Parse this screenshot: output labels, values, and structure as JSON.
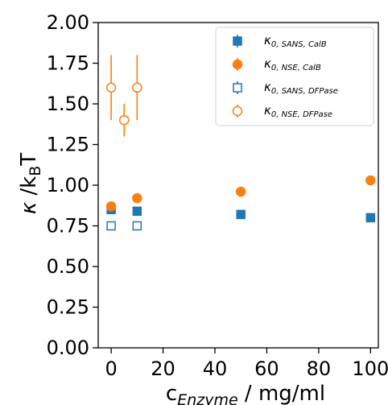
{
  "chart_data": {
    "type": "scatter",
    "xlabel_main": "c",
    "xlabel_sub": "Enzyme",
    "xlabel_rest": " / mg/ml",
    "ylabel_kappa": "κ",
    "ylabel_mid": " /k",
    "ylabel_sub": "B",
    "ylabel_rest": "T",
    "xlim": [
      -5,
      103
    ],
    "ylim": [
      0,
      2.0
    ],
    "xticks": [
      0,
      20,
      40,
      60,
      80,
      100
    ],
    "yticks": [
      0.0,
      0.25,
      0.5,
      0.75,
      1.0,
      1.25,
      1.5,
      1.75,
      2.0
    ],
    "xtick_labels": [
      "0",
      "20",
      "40",
      "60",
      "80",
      "100"
    ],
    "ytick_labels": [
      "0.00",
      "0.25",
      "0.50",
      "0.75",
      "1.00",
      "1.25",
      "1.50",
      "1.75",
      "2.00"
    ],
    "legend_position": "top-right",
    "series": [
      {
        "name_main": "κ",
        "name_sub": "0, SANS, CalB",
        "marker": "square",
        "filled": true,
        "color": "#1f77b4",
        "points": [
          {
            "x": 0,
            "y": 0.85,
            "err": 0.02
          },
          {
            "x": 10,
            "y": 0.84,
            "err": 0.02
          },
          {
            "x": 50,
            "y": 0.82,
            "err": 0.01
          },
          {
            "x": 100,
            "y": 0.8,
            "err": 0.01
          }
        ]
      },
      {
        "name_main": "κ",
        "name_sub": "0, NSE, CalB",
        "marker": "circle",
        "filled": true,
        "color": "#ff7f0e",
        "points": [
          {
            "x": 0,
            "y": 0.87,
            "err": 0.01
          },
          {
            "x": 10,
            "y": 0.92,
            "err": 0.01
          },
          {
            "x": 50,
            "y": 0.96,
            "err": 0.01
          },
          {
            "x": 100,
            "y": 1.03,
            "err": 0.01
          }
        ]
      },
      {
        "name_main": "κ",
        "name_sub": "0, SANS, DFPase",
        "marker": "square",
        "filled": false,
        "color": "#1f77b4",
        "points": [
          {
            "x": 0,
            "y": 0.75,
            "err": 0.01
          },
          {
            "x": 10,
            "y": 0.75,
            "err": 0.01
          }
        ]
      },
      {
        "name_main": "κ",
        "name_sub": "0, NSE, DFPase",
        "marker": "circle",
        "filled": false,
        "color": "#ff7f0e",
        "points": [
          {
            "x": 0,
            "y": 1.6,
            "err": 0.2
          },
          {
            "x": 5,
            "y": 1.4,
            "err": 0.1
          },
          {
            "x": 10,
            "y": 1.6,
            "err": 0.2
          }
        ]
      }
    ]
  }
}
